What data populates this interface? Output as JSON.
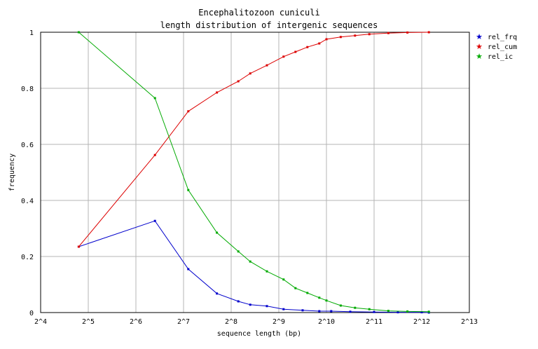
{
  "chart_data": {
    "type": "line",
    "title": "Encephalitozoon cuniculi",
    "subtitle": "length distribution of intergenic sequences",
    "xlabel": "sequence length (bp)",
    "ylabel": "frequency",
    "x_scale": "log2",
    "xlim": [
      4,
      13
    ],
    "ylim": [
      0,
      1
    ],
    "x_ticks": [
      "2^4",
      "2^5",
      "2^6",
      "2^7",
      "2^8",
      "2^9",
      "2^10",
      "2^11",
      "2^12",
      "2^13"
    ],
    "y_ticks": [
      "0",
      "0.2",
      "0.4",
      "0.6",
      "0.8",
      "1"
    ],
    "grid": true,
    "legend_position": "top-right",
    "series": [
      {
        "name": "rel_frq",
        "color": "#0000cc",
        "x": [
          4.8,
          6.4,
          7.1,
          7.7,
          8.15,
          8.4,
          8.75,
          9.1,
          9.5,
          9.85,
          10.1,
          10.5,
          11.0,
          11.5,
          12.0,
          12.15
        ],
        "y": [
          0.235,
          0.327,
          0.155,
          0.068,
          0.04,
          0.028,
          0.023,
          0.012,
          0.008,
          0.005,
          0.005,
          0.003,
          0.002,
          0.001,
          0.001,
          0.0
        ]
      },
      {
        "name": "rel_cum",
        "color": "#dd0000",
        "x": [
          4.8,
          6.4,
          7.1,
          7.7,
          8.15,
          8.4,
          8.75,
          9.1,
          9.35,
          9.6,
          9.85,
          10.0,
          10.3,
          10.6,
          10.9,
          11.3,
          11.7,
          12.15
        ],
        "y": [
          0.235,
          0.562,
          0.718,
          0.785,
          0.825,
          0.853,
          0.882,
          0.913,
          0.93,
          0.947,
          0.96,
          0.975,
          0.983,
          0.988,
          0.993,
          0.997,
          0.999,
          1.0
        ]
      },
      {
        "name": "rel_ic",
        "color": "#00aa00",
        "x": [
          4.8,
          6.4,
          7.1,
          7.7,
          8.15,
          8.4,
          8.75,
          9.1,
          9.35,
          9.6,
          9.85,
          10.0,
          10.3,
          10.6,
          10.9,
          11.3,
          11.7,
          12.15
        ],
        "y": [
          1.0,
          0.765,
          0.437,
          0.285,
          0.218,
          0.182,
          0.147,
          0.118,
          0.087,
          0.07,
          0.053,
          0.043,
          0.025,
          0.017,
          0.012,
          0.006,
          0.004,
          0.003
        ]
      }
    ]
  }
}
